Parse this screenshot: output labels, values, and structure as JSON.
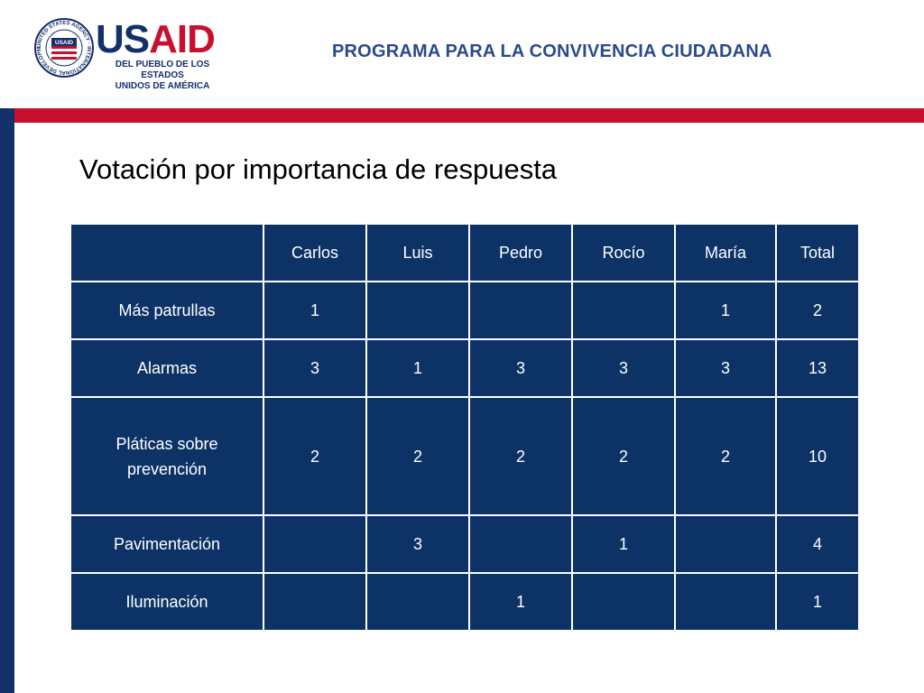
{
  "header": {
    "logo_word_us": "US",
    "logo_word_aid": "AID",
    "logo_sub_line1": "DEL PUEBLO DE LOS ESTADOS",
    "logo_sub_line2": "UNIDOS DE AMÉRICA",
    "seal_text": "UNITED STATES AGENCY · INTERNATIONAL DEVELOPMENT",
    "seal_center": "USAID",
    "program": "PROGRAMA PARA LA CONVIVENCIA CIUDADANA"
  },
  "slide": {
    "title": "Votación por importancia de respuesta"
  },
  "table": {
    "headers": [
      "",
      "Carlos",
      "Luis",
      "Pedro",
      "Rocío",
      "María",
      "Total"
    ],
    "rows": [
      [
        "Más patrullas",
        "1",
        "",
        "",
        "",
        "1",
        "2"
      ],
      [
        "Alarmas",
        "3",
        "1",
        "3",
        "3",
        "3",
        "13"
      ],
      [
        "Pláticas sobre prevención",
        "2",
        "2",
        "2",
        "2",
        "2",
        "10"
      ],
      [
        "Pavimentación",
        "",
        "3",
        "",
        "1",
        "",
        "4"
      ],
      [
        "Iluminación",
        "",
        "",
        "1",
        "",
        "",
        "1"
      ]
    ]
  },
  "colors": {
    "navy": "#0d3366",
    "red": "#c8102e",
    "title_blue": "#2a4a8c"
  }
}
